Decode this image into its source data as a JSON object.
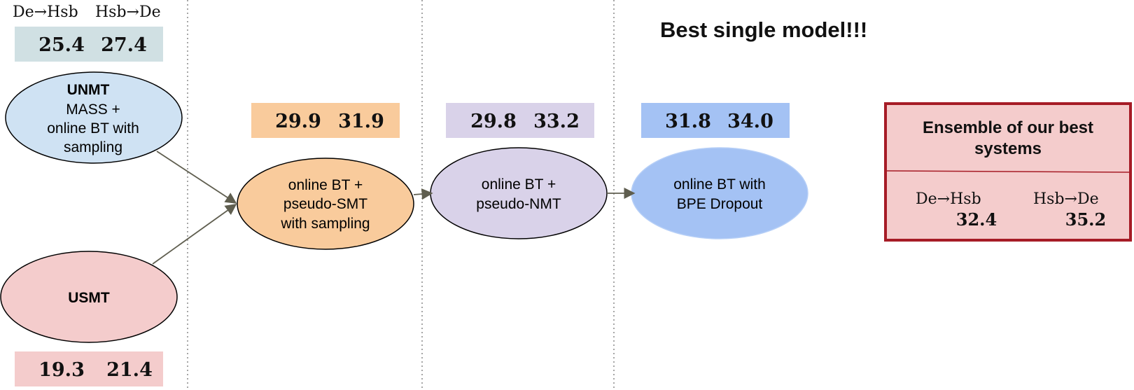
{
  "header": {
    "dir1": "De→Hsb",
    "dir2": "Hsb→De"
  },
  "title": "Best single model!!!",
  "scores": {
    "unmt": {
      "a": "25.4",
      "b": "27.4",
      "color": "#d0e0e3"
    },
    "usmt": {
      "a": "19.3",
      "b": "21.4",
      "color": "#f4cccc"
    },
    "smt": {
      "a": "29.9",
      "b": "31.9",
      "color": "#f9cb9c"
    },
    "nmt": {
      "a": "29.8",
      "b": "33.2",
      "color": "#d9d2e9"
    },
    "bpe": {
      "a": "31.8",
      "b": "34.0",
      "color": "#a4c2f4"
    }
  },
  "nodes": {
    "unmt": {
      "line1": "UNMT",
      "line2": "MASS +",
      "line3": "online BT with",
      "line4": "sampling",
      "color": "#cfe2f3"
    },
    "usmt": {
      "line1": "USMT",
      "color": "#f4cccc"
    },
    "smt": {
      "line1": "online BT +",
      "line2": "pseudo-SMT",
      "line3": "with sampling",
      "color": "#f9cb9c"
    },
    "nmt": {
      "line1": "online BT +",
      "line2": "pseudo-NMT",
      "color": "#d9d2e9"
    },
    "bpe": {
      "line1": "online BT with",
      "line2": "BPE Dropout",
      "color": "#a4c2f4"
    }
  },
  "ensemble": {
    "title1": "Ensemble of our best",
    "title2": "systems",
    "dir1": "De→Hsb",
    "dir2": "Hsb→De",
    "score1": "32.4",
    "score2": "35.2",
    "fill": "#f4cccc",
    "border": "#a61c26"
  },
  "colors": {
    "arrow": "#5f5e4f",
    "divider": "#777777"
  }
}
